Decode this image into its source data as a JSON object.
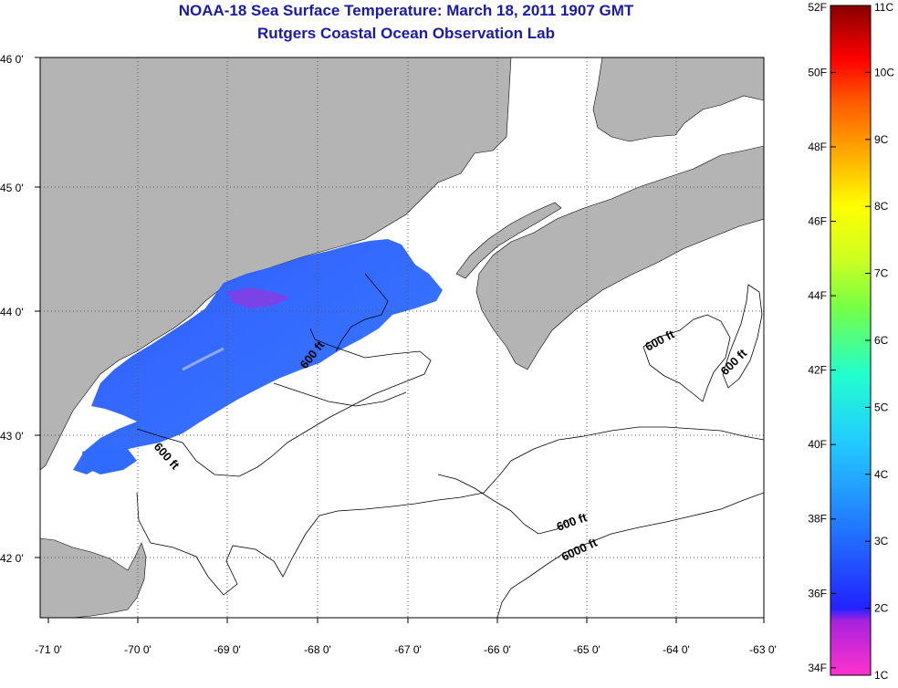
{
  "title_lines": [
    "NOAA-18 Sea Surface Temperature:  March 18, 2011 1907 GMT",
    "Rutgers Coastal Ocean Observation Lab"
  ],
  "map": {
    "lat_ticks": [
      {
        "value": 46,
        "label": "46 0'"
      },
      {
        "value": 45,
        "label": "45 0'"
      },
      {
        "value": 44,
        "label": "44 0'"
      },
      {
        "value": 43,
        "label": "43 0'"
      },
      {
        "value": 42,
        "label": "42 0'"
      }
    ],
    "lon_ticks": [
      {
        "value": -71,
        "label": "-71 0'"
      },
      {
        "value": -70,
        "label": "-70 0'"
      },
      {
        "value": -69,
        "label": "-69 0'"
      },
      {
        "value": -68,
        "label": "-68 0'"
      },
      {
        "value": -67,
        "label": "-67 0'"
      },
      {
        "value": -66,
        "label": "-66 0'"
      },
      {
        "value": -65,
        "label": "-65 0'"
      },
      {
        "value": -64,
        "label": "-64 0'"
      },
      {
        "value": -63,
        "label": "-63 0'"
      }
    ],
    "contour_labels": [
      "600 ft",
      "600 ft",
      "600 ft",
      "600 ft",
      "600 ft",
      "6000 ft"
    ],
    "land_color": "#b4b4b4",
    "ocean_color": "#ffffff"
  },
  "colorbar": {
    "fahrenheit_labels": [
      "52F",
      "50F",
      "48F",
      "46F",
      "44F",
      "42F",
      "40F",
      "38F",
      "36F",
      "34F"
    ],
    "celsius_labels": [
      "11C",
      "10C",
      "9C",
      "8C",
      "7C",
      "6C",
      "5C",
      "4C",
      "3C",
      "2C",
      "1C"
    ],
    "range_c": [
      1,
      11
    ],
    "colors": [
      "#ff33cc",
      "#aa22dd",
      "#2222ff",
      "#2277ff",
      "#22ccff",
      "#22ffcc",
      "#77ff44",
      "#ccff22",
      "#ffff00",
      "#ffaa00",
      "#ff5500",
      "#ff0000",
      "#880000"
    ]
  }
}
